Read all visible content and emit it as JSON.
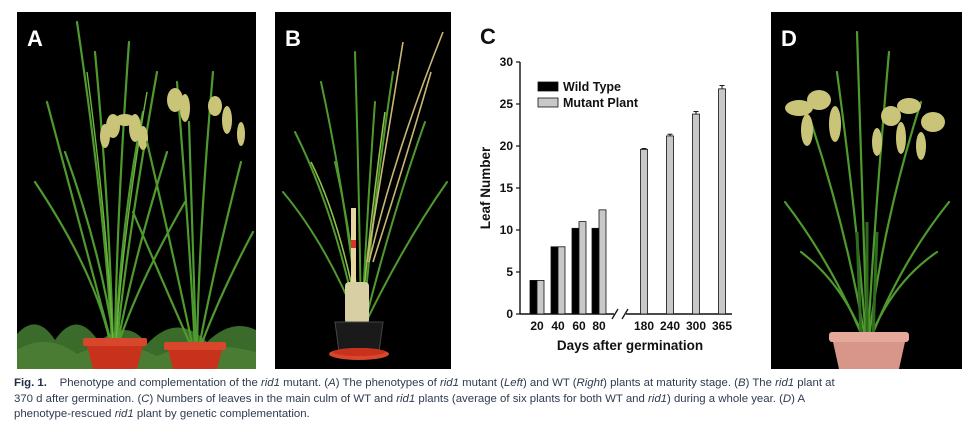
{
  "panels": {
    "a": {
      "label": "A"
    },
    "b": {
      "label": "B"
    },
    "c": {
      "label": "C"
    },
    "d": {
      "label": "D"
    }
  },
  "colors": {
    "background": "#000000",
    "wild_type": "#000000",
    "mutant": "#c8c8c8",
    "leaf_green": "#4f9a2e",
    "panicle": "#c9c478",
    "pot_red": "#c8321c"
  },
  "chart_data": {
    "type": "bar",
    "title": "",
    "xlabel": "Days after germination",
    "ylabel": "Leaf Number",
    "ylim": [
      0,
      30
    ],
    "yticks": [
      "0",
      "5",
      "10",
      "15",
      "20",
      "25",
      "30"
    ],
    "categories": [
      "20",
      "40",
      "60",
      "80",
      "180",
      "240",
      "300",
      "365"
    ],
    "axis_break": "after 80",
    "legend": {
      "position": "top-left",
      "entries": [
        "Wild Type",
        "Mutant Plant"
      ]
    },
    "series": [
      {
        "name": "Wild Type",
        "color": "#000000",
        "values": [
          4.0,
          8.0,
          10.2,
          10.2,
          null,
          null,
          null,
          null
        ]
      },
      {
        "name": "Mutant Plant",
        "color": "#c8c8c8",
        "values": [
          4.0,
          8.0,
          11.0,
          12.4,
          19.6,
          21.2,
          23.8,
          26.8
        ],
        "errors": [
          0,
          0,
          0,
          0,
          0.1,
          0.2,
          0.3,
          0.4
        ]
      }
    ]
  },
  "caption": {
    "fig": "Fig. 1.",
    "line1_a": "Phenotype and complementation of the ",
    "gene": "rid1",
    "line1_b": " mutant. (",
    "A": "A",
    "line1_c": ") The phenotypes of ",
    "line1_d": " mutant (",
    "left": "Left",
    "line1_e": ") and WT (",
    "right": "Right",
    "line1_f": ") plants at maturity stage. (",
    "B": "B",
    "line1_g": ") The ",
    "line1_h": " plant at",
    "line2_a": "370 d after germination. (",
    "C": "C",
    "line2_b": ") Numbers of leaves in the main culm of WT and ",
    "line2_c": " plants (average of six plants for both WT and ",
    "line2_d": ") during a whole year. (",
    "D": "D",
    "line2_e": ") A",
    "line3_a": "phenotype-rescued ",
    "line3_b": " plant by genetic complementation."
  }
}
